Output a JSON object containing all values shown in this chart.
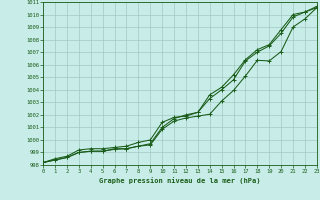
{
  "title": "Graphe pression niveau de la mer (hPa)",
  "bg_color": "#c8ede8",
  "grid_color": "#a0c8c0",
  "line_color": "#1a5c1a",
  "xlim": [
    0,
    23
  ],
  "ylim": [
    998,
    1011
  ],
  "xtick_vals": [
    0,
    1,
    2,
    3,
    4,
    5,
    6,
    7,
    8,
    9,
    10,
    11,
    12,
    13,
    14,
    15,
    16,
    17,
    18,
    19,
    20,
    21,
    22,
    23
  ],
  "ytick_vals": [
    998,
    999,
    1000,
    1001,
    1002,
    1003,
    1004,
    1005,
    1006,
    1007,
    1008,
    1009,
    1010,
    1011
  ],
  "series1": [
    998.2,
    998.5,
    998.7,
    999.2,
    999.3,
    999.3,
    999.4,
    999.5,
    999.8,
    1000.0,
    1001.4,
    1001.8,
    1001.9,
    1002.2,
    1003.3,
    1004.0,
    1004.8,
    1006.3,
    1007.0,
    1007.5,
    1008.5,
    1009.8,
    1010.2,
    1010.55
  ],
  "series2": [
    998.2,
    998.4,
    998.6,
    999.0,
    999.1,
    999.1,
    999.25,
    999.3,
    999.5,
    999.6,
    1000.85,
    1001.5,
    1001.75,
    1001.9,
    1002.05,
    1003.1,
    1003.95,
    1005.1,
    1006.35,
    1006.3,
    1007.05,
    1009.0,
    1009.65,
    1010.55
  ],
  "series3": [
    998.2,
    998.4,
    998.6,
    999.0,
    999.1,
    999.1,
    999.3,
    999.3,
    999.5,
    999.7,
    1001.0,
    1001.7,
    1002.0,
    1002.2,
    1003.6,
    1004.2,
    1005.2,
    1006.4,
    1007.2,
    1007.6,
    1008.8,
    1010.0,
    1010.2,
    1010.65
  ]
}
